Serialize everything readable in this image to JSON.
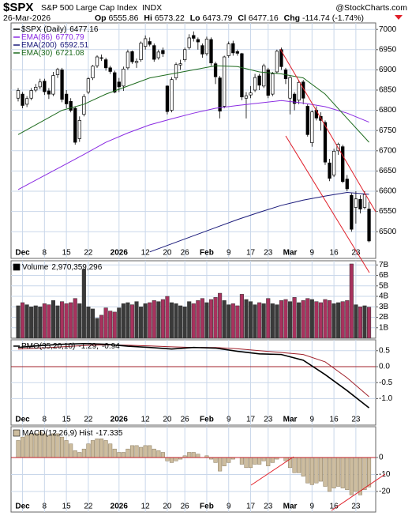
{
  "header": {
    "symbol": "$SPX",
    "name": "S&P 500 Large Cap Index",
    "exchange": "INDX",
    "source": "@StockCharts.com",
    "date": "26-Mar-2026",
    "open_label": "Op",
    "high_label": "Hi",
    "low_label": "Lo",
    "close_label": "Cl",
    "change_label": "Chg",
    "change": -114.74,
    "change_pct": {
      "value": -1.74,
      "label": "(-1.74%)"
    }
  },
  "chart_data": [
    {
      "type": "candlestick",
      "title": "$SPX (Daily)",
      "categories": [
        null,
        "Dec",
        null,
        null,
        null,
        null,
        "8",
        null,
        null,
        null,
        null,
        "15",
        null,
        null,
        null,
        null,
        "22",
        null,
        null,
        null,
        null,
        null,
        null,
        "2026",
        null,
        null,
        null,
        null,
        null,
        "12",
        null,
        null,
        null,
        null,
        "20",
        null,
        null,
        null,
        "26",
        null,
        null,
        null,
        null,
        "Feb",
        null,
        null,
        null,
        null,
        "9",
        null,
        null,
        null,
        null,
        "17",
        null,
        null,
        null,
        "23",
        null,
        null,
        null,
        null,
        "Mar",
        null,
        null,
        null,
        null,
        "9",
        null,
        null,
        null,
        null,
        "16",
        null,
        null,
        null,
        null,
        "23",
        null,
        null,
        null
      ],
      "open": [
        6830,
        6840,
        6815,
        6830,
        6850,
        6858,
        6872,
        6848,
        6840,
        6888,
        6900,
        6840,
        6822,
        6805,
        6730,
        6790,
        6845,
        6880,
        6910,
        6930,
        6925,
        6905,
        6893,
        6870,
        6860,
        6905,
        6945,
        6918,
        6925,
        6958,
        6970,
        6960,
        6930,
        6948,
        6860,
        6800,
        6880,
        6912,
        6925,
        6955,
        6985,
        6975,
        6960,
        6940,
        6975,
        6915,
        6880,
        6810,
        6935,
        6965,
        6945,
        6940,
        6830,
        6838,
        6850,
        6885,
        6860,
        6900,
        6840,
        6895,
        6950,
        6900,
        6830,
        6840,
        6825,
        6870,
        6810,
        6720,
        6800,
        6785,
        6770,
        6670,
        6640,
        6700,
        6710,
        6630,
        6590,
        6560,
        6580,
        6560,
        6555.86
      ],
      "high": [
        6855,
        6845,
        6835,
        6855,
        6865,
        6878,
        6878,
        6855,
        6895,
        6905,
        6905,
        6850,
        6830,
        6810,
        6785,
        6840,
        6882,
        6912,
        6936,
        6938,
        6930,
        6910,
        6898,
        6880,
        6908,
        6950,
        6948,
        6928,
        6970,
        6985,
        6980,
        6965,
        6950,
        6955,
        6862,
        6882,
        6918,
        6925,
        6955,
        6988,
        6995,
        6980,
        6965,
        6982,
        6980,
        6920,
        6885,
        6935,
        6970,
        6972,
        6950,
        6942,
        6845,
        6860,
        6890,
        6890,
        6915,
        6905,
        6895,
        6950,
        6955,
        6905,
        6885,
        6845,
        6875,
        6875,
        6815,
        6800,
        6810,
        6795,
        6775,
        6680,
        6705,
        6720,
        6715,
        6640,
        6595,
        6600,
        6590,
        6600,
        6573.22
      ],
      "low": [
        6822,
        6805,
        6808,
        6825,
        6845,
        6852,
        6838,
        6828,
        6835,
        6880,
        6820,
        6805,
        6795,
        6715,
        6722,
        6785,
        6840,
        6875,
        6905,
        6922,
        6898,
        6890,
        6842,
        6845,
        6848,
        6900,
        6915,
        6905,
        6920,
        6950,
        6958,
        6920,
        6925,
        6932,
        6790,
        6795,
        6875,
        6900,
        6920,
        6950,
        6970,
        6950,
        6930,
        6935,
        6910,
        6865,
        6780,
        6805,
        6930,
        6935,
        6935,
        6825,
        6780,
        6830,
        6845,
        6850,
        6855,
        6830,
        6835,
        6890,
        6900,
        6865,
        6790,
        6800,
        6815,
        6815,
        6735,
        6710,
        6775,
        6750,
        6665,
        6625,
        6635,
        6690,
        6620,
        6600,
        6500,
        6520,
        6545,
        6555,
        6473.79
      ],
      "close": [
        6849,
        6812,
        6829,
        6849,
        6857,
        6870,
        6846,
        6840,
        6886,
        6901,
        6827,
        6816,
        6800,
        6721,
        6775,
        6834,
        6878,
        6909,
        6932,
        6929,
        6905,
        6896,
        6845,
        6858,
        6902,
        6944,
        6920,
        6921,
        6966,
        6977,
        6963,
        6926,
        6944,
        6940,
        6797,
        6876,
        6913,
        6915,
        6950,
        6979,
        6978,
        6969,
        6939,
        6976,
        6917,
        6883,
        6798,
        6932,
        6964,
        6942,
        6941,
        6833,
        6836,
        6843,
        6881,
        6862,
        6910,
        6837,
        6890,
        6946,
        6908,
        6878,
        6881,
        6817,
        6869,
        6830,
        6740,
        6796,
        6781,
        6775,
        6672,
        6632,
        6699,
        6716,
        6624,
        6606,
        6506,
        6581,
        6556,
        6592,
        6477.16
      ],
      "up_color": "#ffffff",
      "down_color": "#000000",
      "ylim": [
        6434,
        7016
      ],
      "yticks": [
        6500,
        6550,
        6600,
        6650,
        6700,
        6750,
        6800,
        6850,
        6900,
        6950,
        7000
      ],
      "grid": true,
      "overlays": {
        "x": [
          0,
          5,
          10,
          15,
          20,
          25,
          30,
          35,
          40,
          45,
          50,
          55,
          60,
          65,
          70,
          75,
          80
        ],
        "series": [
          {
            "name": "EMA(86)",
            "color": "#8a2be2",
            "values": [
              6604,
              6633,
              6662,
              6691,
              6721,
              6744,
              6764,
              6779,
              6793,
              6805,
              6812,
              6818,
              6824,
              6818,
              6809,
              6793,
              6770.79
            ]
          },
          {
            "name": "EMA(200)",
            "color": "#1a1a7a",
            "values": [
              null,
              null,
              null,
              null,
              null,
              null,
              6450,
              6470,
              6490,
              6510,
              6530,
              6548,
              6565,
              6578,
              6588,
              6597,
              6592.51
            ]
          },
          {
            "name": "EMA(30)",
            "color": "#1e6b1e",
            "values": [
              6740,
              6770,
              6800,
              6815,
              6840,
              6860,
              6880,
              6890,
              6900,
              6910,
              6908,
              6895,
              6890,
              6880,
              6840,
              6780,
              6721.08
            ]
          }
        ]
      }
    },
    {
      "type": "bar",
      "title": "Volume",
      "legend_value": {
        "value": 2.970359296,
        "label": "2,970,359,296"
      },
      "values": [
        3.1,
        3.4,
        3.2,
        3.0,
        3.1,
        3.0,
        3.3,
        3.2,
        3.6,
        3.1,
        3.5,
        3.3,
        3.4,
        3.8,
        3.3,
        6.6,
        3.0,
        2.8,
        1.9,
        2.2,
        2.9,
        2.6,
        2.5,
        2.9,
        3.3,
        3.4,
        3.2,
        3.5,
        3.0,
        3.3,
        3.4,
        3.6,
        3.5,
        3.7,
        4.0,
        3.4,
        3.3,
        3.1,
        3.0,
        3.5,
        3.3,
        3.6,
        3.8,
        3.4,
        3.7,
        3.9,
        4.3,
        3.6,
        3.2,
        3.3,
        3.1,
        4.2,
        3.7,
        3.5,
        3.2,
        3.4,
        3.3,
        3.8,
        3.3,
        3.2,
        3.6,
        3.7,
        3.5,
        3.9,
        3.4,
        3.6,
        3.8,
        3.7,
        3.5,
        3.4,
        3.7,
        3.6,
        3.3,
        3.4,
        3.5,
        3.6,
        7.1,
        3.2,
        3.0,
        3.1,
        2.970359296
      ],
      "up_color": "#3a3a3a",
      "down_color": "#a8325e",
      "ylim": [
        0,
        7.4
      ],
      "yticks": [
        {
          "value": 1,
          "label": "1B"
        },
        {
          "value": 2,
          "label": "2B"
        },
        {
          "value": 3,
          "label": "3B"
        },
        {
          "value": 4,
          "label": "4B"
        },
        {
          "value": 5,
          "label": "5B"
        },
        {
          "value": 6,
          "label": "6B"
        },
        {
          "value": 7,
          "label": "7B"
        }
      ],
      "grid": true
    },
    {
      "type": "line",
      "title": "PMO(35,20,10)",
      "x": [
        0,
        5,
        10,
        15,
        20,
        25,
        30,
        35,
        40,
        45,
        50,
        55,
        60,
        65,
        70,
        75,
        80
      ],
      "series": [
        {
          "color": "#000000",
          "values": [
            0.6,
            0.66,
            0.7,
            0.72,
            0.7,
            0.64,
            0.6,
            0.55,
            0.6,
            0.58,
            0.48,
            0.4,
            0.38,
            0.2,
            -0.25,
            -0.75,
            -1.29
          ]
        },
        {
          "color": "#a0202a",
          "values": [
            0.55,
            0.58,
            0.62,
            0.66,
            0.68,
            0.67,
            0.65,
            0.62,
            0.6,
            0.6,
            0.56,
            0.5,
            0.44,
            0.38,
            0.15,
            -0.35,
            -0.94
          ]
        }
      ],
      "zero_line_color": "#a0202a",
      "ylim": [
        -1.83,
        0.84
      ],
      "yticks": [
        0.5,
        {
          "value": 0,
          "label": "0.0"
        },
        -0.5,
        {
          "value": -1,
          "label": "-1.0"
        }
      ],
      "grid": true
    },
    {
      "type": "bar",
      "title": "MACD(12,26,9) Hist",
      "values": [
        10,
        12,
        13,
        14,
        14,
        15,
        14,
        13,
        14,
        14,
        12,
        10,
        8,
        4,
        3,
        5,
        8,
        10,
        11,
        11,
        10,
        8,
        5,
        3,
        3,
        5,
        7,
        7,
        6,
        7,
        7,
        5,
        4,
        3,
        -2,
        -3,
        -2,
        -1,
        1,
        3,
        3,
        2,
        0,
        1,
        -1,
        -3,
        -8,
        -5,
        -3,
        -1,
        0,
        -4,
        -6,
        -6,
        -4,
        -4,
        -2,
        -5,
        -3,
        -1,
        0,
        -2,
        -6,
        -9,
        -9,
        -11,
        -15,
        -16,
        -15,
        -14,
        -17,
        -20,
        -18,
        -17,
        -18,
        -19,
        -22,
        -20,
        -22,
        -19,
        -17.335
      ],
      "color": "#cdbd9f",
      "zero_line_color": "#c0202a",
      "ylim": [
        -32.1,
        18.1
      ],
      "yticks": [
        0,
        -10,
        -20
      ],
      "grid": true
    }
  ]
}
